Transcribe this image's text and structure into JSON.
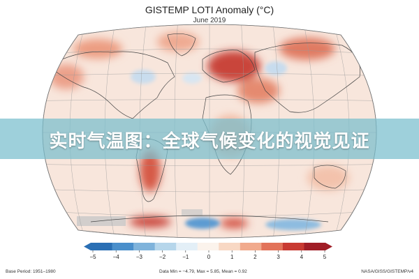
{
  "title": "GISTEMP LOTI Anomaly (°C)",
  "subtitle": "June 2019",
  "banner_text": "实时气温图：全球气候变化的视觉见证",
  "colorbar": {
    "ticks": [
      "−5",
      "−4",
      "−3",
      "−2",
      "−1",
      "0",
      "1",
      "2",
      "3",
      "4",
      "5"
    ],
    "colors": [
      "#2a6fb4",
      "#4a8fcb",
      "#7fb3db",
      "#b6d6eb",
      "#e3eff7",
      "#fbf3ec",
      "#f8d8c4",
      "#f1aa8d",
      "#e2735a",
      "#c83a32",
      "#a01d26"
    ]
  },
  "footer": {
    "left": "Base Period: 1951–1980",
    "center": "Data Min = −4.79, Max = 5.85, Mean = 0.92",
    "right": "NASA/GISS/GISTEMP/v4"
  },
  "colors": {
    "ocean_base": "#f8e6dc",
    "warm_hot": "#c9453b",
    "warm_mid": "#e59277",
    "cool": "#9cc4e3",
    "no_data": "#c8c8c8",
    "banner": "#78becd"
  }
}
